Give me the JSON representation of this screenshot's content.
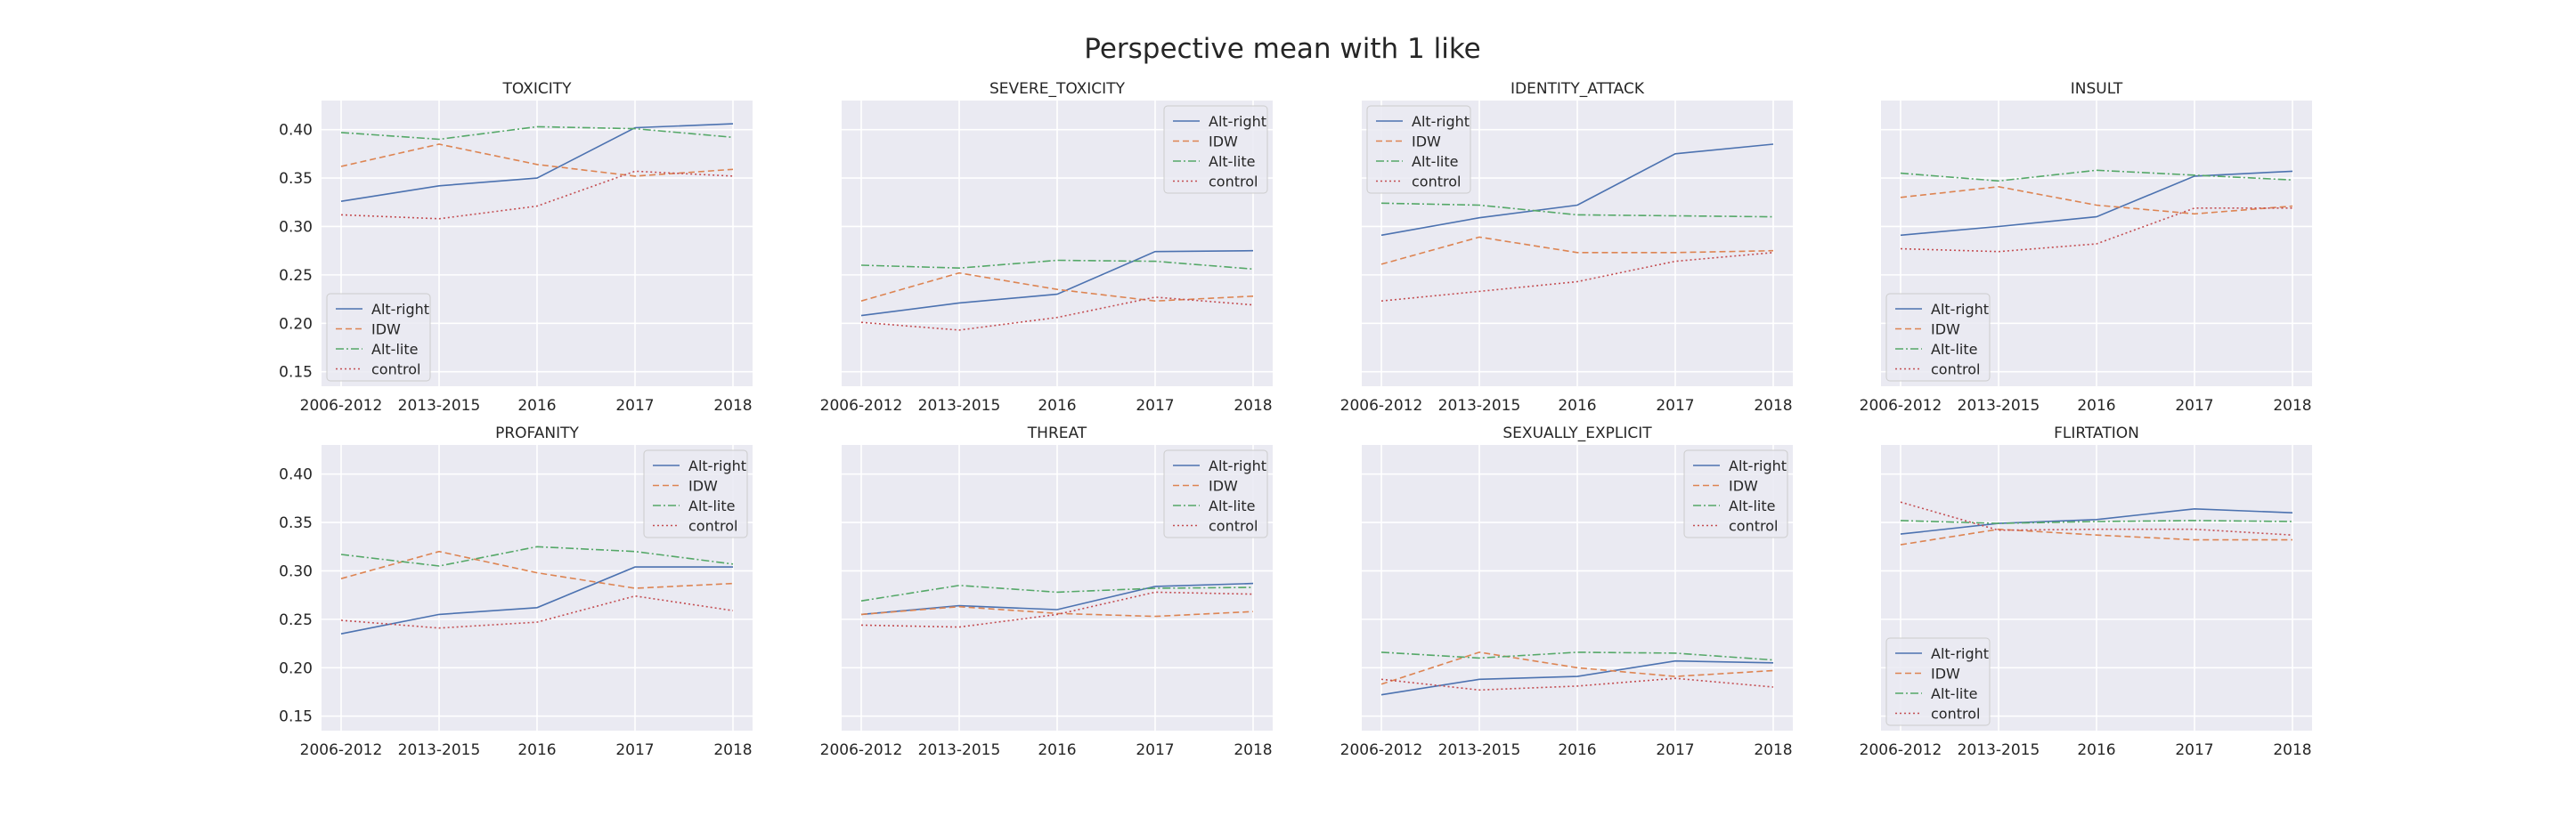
{
  "figure": {
    "title": "Perspective mean with 1 like"
  },
  "style": {
    "panel_bg": "#eaeaf2",
    "grid": "#ffffff",
    "text": "#262626",
    "series_colors": {
      "Alt-right": "#4c72b0",
      "IDW": "#dd8452",
      "Alt-lite": "#55a868",
      "control": "#c44e52"
    },
    "series_dash": {
      "Alt-right": "solid",
      "IDW": "dashed",
      "Alt-lite": "dashdot",
      "control": "dotted"
    }
  },
  "chart_data": [
    {
      "type": "line",
      "title": "TOXICITY",
      "categories": [
        "2006-2012",
        "2013-2015",
        "2016",
        "2017",
        "2018"
      ],
      "ylim": [
        0.135,
        0.43
      ],
      "yticks": [
        "0.15",
        "0.20",
        "0.25",
        "0.30",
        "0.35",
        "0.40"
      ],
      "grid": true,
      "legend": "lower-left",
      "series": [
        {
          "name": "Alt-right",
          "values": [
            0.326,
            0.342,
            0.35,
            0.402,
            0.406
          ]
        },
        {
          "name": "IDW",
          "values": [
            0.362,
            0.385,
            0.364,
            0.352,
            0.359
          ]
        },
        {
          "name": "Alt-lite",
          "values": [
            0.397,
            0.39,
            0.403,
            0.401,
            0.392
          ]
        },
        {
          "name": "control",
          "values": [
            0.312,
            0.308,
            0.321,
            0.357,
            0.352
          ]
        }
      ]
    },
    {
      "type": "line",
      "title": "SEVERE_TOXICITY",
      "categories": [
        "2006-2012",
        "2013-2015",
        "2016",
        "2017",
        "2018"
      ],
      "ylim": [
        0.135,
        0.43
      ],
      "yticks": [
        "0.15",
        "0.20",
        "0.25",
        "0.30",
        "0.35",
        "0.40"
      ],
      "grid": true,
      "legend": "upper-right",
      "series": [
        {
          "name": "Alt-right",
          "values": [
            0.208,
            0.221,
            0.23,
            0.274,
            0.275
          ]
        },
        {
          "name": "IDW",
          "values": [
            0.223,
            0.252,
            0.235,
            0.223,
            0.228
          ]
        },
        {
          "name": "Alt-lite",
          "values": [
            0.26,
            0.257,
            0.265,
            0.264,
            0.256
          ]
        },
        {
          "name": "control",
          "values": [
            0.201,
            0.193,
            0.206,
            0.227,
            0.219
          ]
        }
      ]
    },
    {
      "type": "line",
      "title": "IDENTITY_ATTACK",
      "categories": [
        "2006-2012",
        "2013-2015",
        "2016",
        "2017",
        "2018"
      ],
      "ylim": [
        0.135,
        0.43
      ],
      "yticks": [
        "0.15",
        "0.20",
        "0.25",
        "0.30",
        "0.35",
        "0.40"
      ],
      "grid": true,
      "legend": "upper-left",
      "series": [
        {
          "name": "Alt-right",
          "values": [
            0.291,
            0.309,
            0.322,
            0.375,
            0.385
          ]
        },
        {
          "name": "IDW",
          "values": [
            0.261,
            0.289,
            0.273,
            0.273,
            0.275
          ]
        },
        {
          "name": "Alt-lite",
          "values": [
            0.324,
            0.322,
            0.312,
            0.311,
            0.31
          ]
        },
        {
          "name": "control",
          "values": [
            0.223,
            0.233,
            0.243,
            0.264,
            0.273
          ]
        }
      ]
    },
    {
      "type": "line",
      "title": "INSULT",
      "categories": [
        "2006-2012",
        "2013-2015",
        "2016",
        "2017",
        "2018"
      ],
      "ylim": [
        0.135,
        0.43
      ],
      "yticks": [
        "0.15",
        "0.20",
        "0.25",
        "0.30",
        "0.35",
        "0.40"
      ],
      "grid": true,
      "legend": "lower-left",
      "series": [
        {
          "name": "Alt-right",
          "values": [
            0.291,
            0.3,
            0.31,
            0.352,
            0.357
          ]
        },
        {
          "name": "IDW",
          "values": [
            0.33,
            0.341,
            0.322,
            0.313,
            0.321
          ]
        },
        {
          "name": "Alt-lite",
          "values": [
            0.355,
            0.347,
            0.358,
            0.353,
            0.348
          ]
        },
        {
          "name": "control",
          "values": [
            0.277,
            0.274,
            0.282,
            0.319,
            0.319
          ]
        }
      ]
    },
    {
      "type": "line",
      "title": "PROFANITY",
      "categories": [
        "2006-2012",
        "2013-2015",
        "2016",
        "2017",
        "2018"
      ],
      "ylim": [
        0.135,
        0.43
      ],
      "yticks": [
        "0.15",
        "0.20",
        "0.25",
        "0.30",
        "0.35",
        "0.40"
      ],
      "grid": true,
      "legend": "upper-right",
      "series": [
        {
          "name": "Alt-right",
          "values": [
            0.235,
            0.255,
            0.262,
            0.304,
            0.304
          ]
        },
        {
          "name": "IDW",
          "values": [
            0.292,
            0.32,
            0.298,
            0.282,
            0.287
          ]
        },
        {
          "name": "Alt-lite",
          "values": [
            0.317,
            0.305,
            0.325,
            0.32,
            0.307
          ]
        },
        {
          "name": "control",
          "values": [
            0.249,
            0.241,
            0.247,
            0.274,
            0.259
          ]
        }
      ]
    },
    {
      "type": "line",
      "title": "THREAT",
      "categories": [
        "2006-2012",
        "2013-2015",
        "2016",
        "2017",
        "2018"
      ],
      "ylim": [
        0.135,
        0.43
      ],
      "yticks": [
        "0.15",
        "0.20",
        "0.25",
        "0.30",
        "0.35",
        "0.40"
      ],
      "grid": true,
      "legend": "upper-right",
      "series": [
        {
          "name": "Alt-right",
          "values": [
            0.255,
            0.264,
            0.26,
            0.284,
            0.287
          ]
        },
        {
          "name": "IDW",
          "values": [
            0.255,
            0.263,
            0.256,
            0.253,
            0.258
          ]
        },
        {
          "name": "Alt-lite",
          "values": [
            0.269,
            0.285,
            0.278,
            0.282,
            0.283
          ]
        },
        {
          "name": "control",
          "values": [
            0.244,
            0.242,
            0.255,
            0.278,
            0.276
          ]
        }
      ]
    },
    {
      "type": "line",
      "title": "SEXUALLY_EXPLICIT",
      "categories": [
        "2006-2012",
        "2013-2015",
        "2016",
        "2017",
        "2018"
      ],
      "ylim": [
        0.135,
        0.43
      ],
      "yticks": [
        "0.15",
        "0.20",
        "0.25",
        "0.30",
        "0.35",
        "0.40"
      ],
      "grid": true,
      "legend": "upper-right",
      "series": [
        {
          "name": "Alt-right",
          "values": [
            0.172,
            0.188,
            0.191,
            0.207,
            0.205
          ]
        },
        {
          "name": "IDW",
          "values": [
            0.183,
            0.216,
            0.2,
            0.191,
            0.197
          ]
        },
        {
          "name": "Alt-lite",
          "values": [
            0.216,
            0.21,
            0.216,
            0.215,
            0.208
          ]
        },
        {
          "name": "control",
          "values": [
            0.188,
            0.177,
            0.181,
            0.189,
            0.18
          ]
        }
      ]
    },
    {
      "type": "line",
      "title": "FLIRTATION",
      "categories": [
        "2006-2012",
        "2013-2015",
        "2016",
        "2017",
        "2018"
      ],
      "ylim": [
        0.135,
        0.43
      ],
      "yticks": [
        "0.15",
        "0.20",
        "0.25",
        "0.30",
        "0.35",
        "0.40"
      ],
      "grid": true,
      "legend": "lower-left",
      "series": [
        {
          "name": "Alt-right",
          "values": [
            0.338,
            0.349,
            0.353,
            0.364,
            0.36
          ]
        },
        {
          "name": "IDW",
          "values": [
            0.327,
            0.343,
            0.337,
            0.332,
            0.332
          ]
        },
        {
          "name": "Alt-lite",
          "values": [
            0.352,
            0.349,
            0.351,
            0.352,
            0.351
          ]
        },
        {
          "name": "control",
          "values": [
            0.371,
            0.342,
            0.343,
            0.343,
            0.337
          ]
        }
      ]
    }
  ]
}
